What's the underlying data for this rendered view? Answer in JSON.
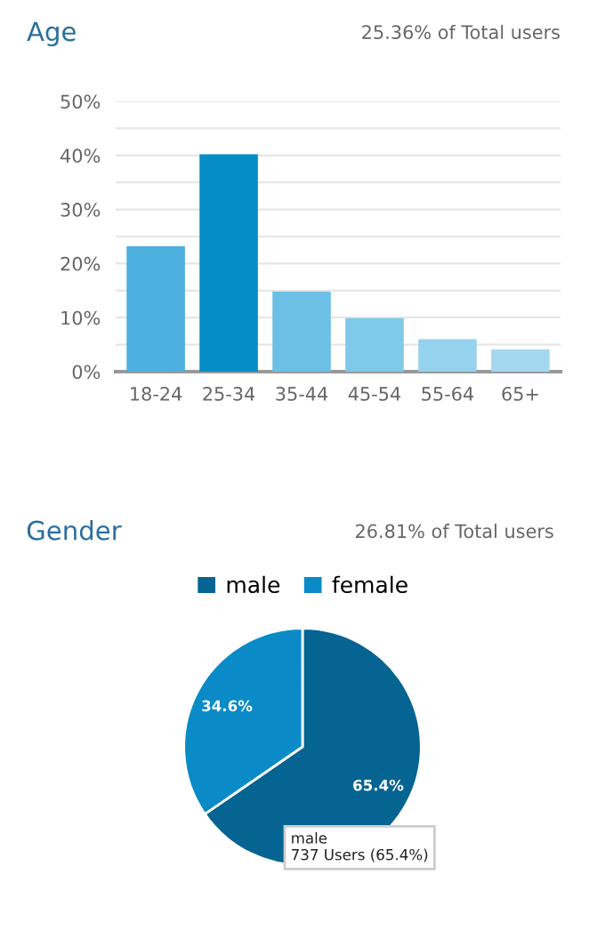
{
  "chart_data": [
    {
      "type": "bar",
      "title": "Age",
      "subtitle": "25.36% of Total users",
      "categories": [
        "18-24",
        "25-34",
        "35-44",
        "45-54",
        "55-64",
        "65+"
      ],
      "values": [
        23.2,
        40.2,
        14.8,
        9.9,
        6.0,
        4.1
      ],
      "colors": [
        "#4db0de",
        "#058dc7",
        "#6cc0e5",
        "#7fc9ea",
        "#95d2ee",
        "#a3d8f0"
      ],
      "ylim": [
        0,
        50
      ],
      "yticks": [
        {
          "value": 0,
          "label": "0%"
        },
        {
          "value": 5,
          "label": null
        },
        {
          "value": 10,
          "label": "10%"
        },
        {
          "value": 15,
          "label": null
        },
        {
          "value": 20,
          "label": "20%"
        },
        {
          "value": 25,
          "label": null
        },
        {
          "value": 30,
          "label": "30%"
        },
        {
          "value": 35,
          "label": null
        },
        {
          "value": 40,
          "label": "40%"
        },
        {
          "value": 45,
          "label": null
        },
        {
          "value": 50,
          "label": "50%"
        }
      ],
      "grid": "y"
    },
    {
      "type": "pie",
      "title": "Gender",
      "subtitle": "26.81% of Total users",
      "categories": [
        "male",
        "female"
      ],
      "values": [
        65.4,
        34.6
      ],
      "colors": [
        "#056492",
        "#0a8bc7"
      ],
      "value_labels": [
        "65.4%",
        "34.6%"
      ],
      "legend": "top",
      "annotations": [
        "male\n737 Users (65.4%)"
      ]
    }
  ]
}
